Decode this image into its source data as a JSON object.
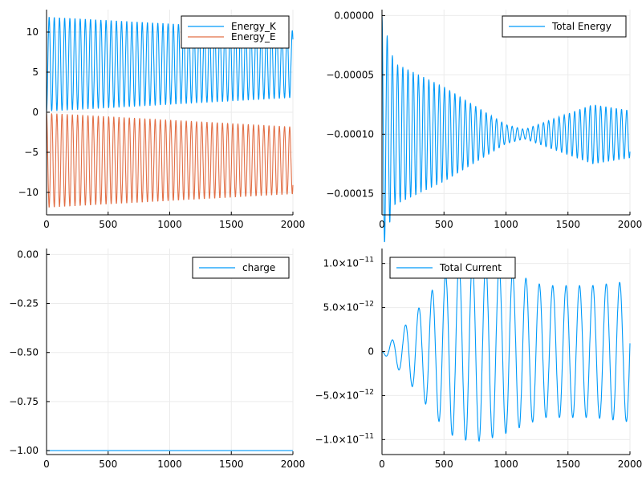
{
  "chart_data": [
    {
      "type": "line",
      "grid": true,
      "legend_position": "top-right",
      "xlim": [
        0,
        2000
      ],
      "ylim": [
        -12.8,
        12.8
      ],
      "xticks": [
        0,
        500,
        1000,
        1500,
        2000
      ],
      "xticklabels": [
        "0",
        "500",
        "1000",
        "1500",
        "2000"
      ],
      "yticks": [
        10,
        5,
        0,
        -5,
        -10
      ],
      "yticklabels": [
        "10",
        "5",
        "0",
        "−5",
        "−10"
      ],
      "series": [
        {
          "name": "Energy_K",
          "color": "#009af9",
          "pattern": {
            "kind": "oscillation",
            "period": 42,
            "mean": 6.0,
            "amplitude": 5.9,
            "amplitude_end": 4.2,
            "phase": -1.5708
          }
        },
        {
          "name": "Energy_E",
          "color": "#e26f46",
          "pattern": {
            "kind": "oscillation",
            "period": 42,
            "mean": -6.0,
            "amplitude": 5.9,
            "amplitude_end": 4.2,
            "phase": 1.5708
          }
        }
      ]
    },
    {
      "type": "line",
      "grid": true,
      "legend_position": "top-right",
      "xlim": [
        0,
        2000
      ],
      "ylim": [
        -0.000168,
        5e-06
      ],
      "xticks": [
        0,
        500,
        1000,
        1500,
        2000
      ],
      "xticklabels": [
        "0",
        "500",
        "1000",
        "1500",
        "2000"
      ],
      "yticks": [
        0,
        -5e-05,
        -0.0001,
        -0.00015
      ],
      "yticklabels": [
        "0.00000",
        "−0.00005",
        "−0.00010",
        "−0.00015"
      ],
      "series": [
        {
          "name": "Total Energy",
          "color": "#009af9",
          "pattern": {
            "kind": "beating",
            "period": 42,
            "mean": -0.0001,
            "envelope": [
              [
                0,
                0.0001
              ],
              [
                100,
                6e-05
              ],
              [
                500,
                4e-05
              ],
              [
                1000,
                8e-06
              ],
              [
                1150,
                4e-06
              ],
              [
                1700,
                2.5e-05
              ],
              [
                2000,
                2e-05
              ]
            ]
          }
        }
      ]
    },
    {
      "type": "line",
      "grid": true,
      "legend_position": "top-right",
      "xlim": [
        0,
        2000
      ],
      "ylim": [
        -1.02,
        0.03
      ],
      "xticks": [
        0,
        500,
        1000,
        1500,
        2000
      ],
      "xticklabels": [
        "0",
        "500",
        "1000",
        "1500",
        "2000"
      ],
      "yticks": [
        0,
        -0.25,
        -0.5,
        -0.75,
        -1.0
      ],
      "yticklabels": [
        "0.00",
        "−0.25",
        "−0.50",
        "−0.75",
        "−1.00"
      ],
      "series": [
        {
          "name": "charge",
          "color": "#009af9",
          "pattern": {
            "kind": "constant",
            "value": -1.0
          }
        }
      ]
    },
    {
      "type": "line",
      "grid": true,
      "legend_position": "top-left",
      "xlim": [
        0,
        2000
      ],
      "ylim": [
        -1.17e-11,
        1.17e-11
      ],
      "xticks": [
        0,
        500,
        1000,
        1500,
        2000
      ],
      "xticklabels": [
        "0",
        "500",
        "1000",
        "1500",
        "2000"
      ],
      "yticks": [
        1e-11,
        5e-12,
        0,
        -5e-12,
        -1e-11
      ],
      "yticklabels": [
        {
          "mant": "1.0×10",
          "exp": "−11"
        },
        {
          "mant": "5.0×10",
          "exp": "−12"
        },
        {
          "mant": "0",
          "exp": ""
        },
        {
          "mant": "−5.0×10",
          "exp": "−12"
        },
        {
          "mant": "−1.0×10",
          "exp": "−11"
        }
      ],
      "series": [
        {
          "name": "Total Current",
          "color": "#009af9",
          "pattern": {
            "kind": "growing_oscillation",
            "period": 108,
            "envelope": [
              [
                0,
                0
              ],
              [
                60,
                1e-12
              ],
              [
                150,
                2.3e-12
              ],
              [
                300,
                5e-12
              ],
              [
                450,
                7.8e-12
              ],
              [
                600,
                1e-11
              ],
              [
                800,
                1.02e-11
              ],
              [
                1000,
                9.3e-12
              ],
              [
                1300,
                7.5e-12
              ],
              [
                1700,
                7.5e-12
              ],
              [
                2000,
                8e-12
              ]
            ]
          }
        }
      ]
    }
  ]
}
